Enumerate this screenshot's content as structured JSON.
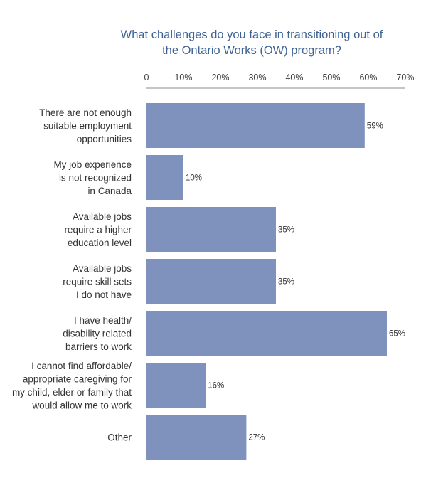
{
  "chart_data": {
    "type": "bar",
    "orientation": "horizontal",
    "title": "What challenges do you face in transitioning out of the Ontario Works (OW) program?",
    "title_lines": [
      "What challenges do you face in transitioning out of",
      "the Ontario Works (OW) program?"
    ],
    "x_axis": {
      "position": "top",
      "range": [
        0,
        70
      ],
      "ticks": [
        0,
        10,
        20,
        30,
        40,
        50,
        60,
        70
      ],
      "tick_labels": [
        "0",
        "10%",
        "20%",
        "30%",
        "40%",
        "50%",
        "60%",
        "70%"
      ]
    },
    "categories": [
      [
        "There are not enough",
        "suitable employment",
        "opportunities"
      ],
      [
        "My job experience",
        "is not recognized",
        "in Canada"
      ],
      [
        "Available jobs",
        "require a higher",
        "education level"
      ],
      [
        "Available jobs",
        "require skill sets",
        "I do not have"
      ],
      [
        "I have health/",
        "disability related",
        "barriers to work"
      ],
      [
        "I cannot find affordable/",
        "appropriate caregiving for",
        "my child, elder or family that",
        "would allow me to work"
      ],
      [
        "Other"
      ]
    ],
    "values": [
      59,
      10,
      35,
      35,
      65,
      16,
      27
    ],
    "value_labels": [
      "59%",
      "10%",
      "35%",
      "35%",
      "65%",
      "16%",
      "27%"
    ],
    "bar_color": "#7e92bd",
    "title_color": "#3d6293",
    "grid": false
  }
}
